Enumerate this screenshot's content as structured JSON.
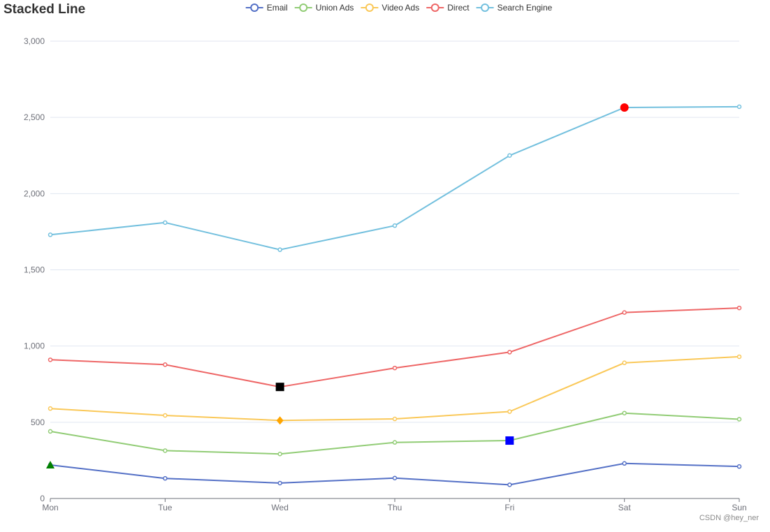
{
  "chart_data": {
    "type": "line",
    "title": "Stacked Line",
    "categories": [
      "Mon",
      "Tue",
      "Wed",
      "Thu",
      "Fri",
      "Sat",
      "Sun"
    ],
    "ylim": [
      0,
      3000
    ],
    "yticks": [
      0,
      500,
      1000,
      1500,
      2000,
      2500,
      3000
    ],
    "ytick_labels": [
      "0",
      "500",
      "1,000",
      "1,500",
      "2,000",
      "2,500",
      "3,000"
    ],
    "grid": true,
    "legend_position": "top-center",
    "series": [
      {
        "name": "Email",
        "color": "#5470c6",
        "values": [
          220,
          132,
          101,
          134,
          90,
          230,
          210
        ]
      },
      {
        "name": "Union Ads",
        "color": "#91cc75",
        "values": [
          440,
          314,
          292,
          368,
          380,
          560,
          520
        ]
      },
      {
        "name": "Video Ads",
        "color": "#fac858",
        "values": [
          590,
          545,
          512,
          522,
          570,
          890,
          930
        ]
      },
      {
        "name": "Direct",
        "color": "#ee6666",
        "values": [
          910,
          878,
          732,
          856,
          960,
          1220,
          1250
        ]
      },
      {
        "name": "Search Engine",
        "color": "#73c0de",
        "values": [
          1730,
          1810,
          1632,
          1790,
          2250,
          2565,
          2570
        ]
      }
    ],
    "highlights": [
      {
        "series": "Email",
        "category": "Mon",
        "shape": "triangle",
        "color": "#008000"
      },
      {
        "series": "Union Ads",
        "category": "Fri",
        "shape": "square",
        "color": "#0000ff"
      },
      {
        "series": "Video Ads",
        "category": "Wed",
        "shape": "diamond",
        "color": "#ffa500"
      },
      {
        "series": "Direct",
        "category": "Wed",
        "shape": "square",
        "color": "#000000"
      },
      {
        "series": "Search Engine",
        "category": "Sat",
        "shape": "circle",
        "color": "#ff0000"
      }
    ]
  },
  "watermark": "CSDN @hey_ner"
}
